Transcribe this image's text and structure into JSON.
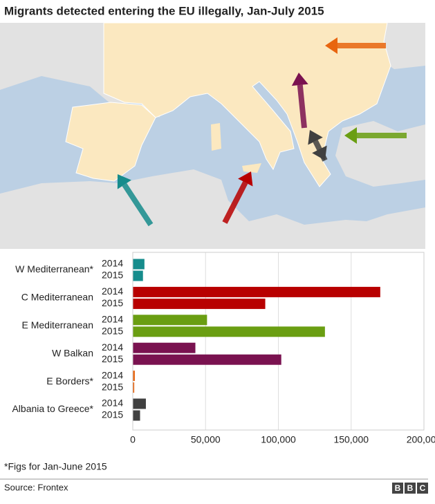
{
  "chart_data": {
    "type": "bar",
    "orientation": "horizontal",
    "title": "Migrants detected entering the EU illegally, Jan-July 2015",
    "categories": [
      "W Mediterranean*",
      "C Mediterranean",
      "E Mediterranean",
      "W Balkan",
      "E Borders*",
      "Albania to Greece*"
    ],
    "colors": [
      "#168c8c",
      "#b80000",
      "#6a9e12",
      "#7a1250",
      "#e8650f",
      "#404040"
    ],
    "series": [
      {
        "name": "2014",
        "values": [
          8000,
          170000,
          51000,
          43000,
          1400,
          9000
        ]
      },
      {
        "name": "2015",
        "values": [
          7000,
          91000,
          132000,
          102000,
          1000,
          5000
        ]
      }
    ],
    "xlim": [
      0,
      200000
    ],
    "xticks": [
      0,
      {
        "value": 50000,
        "label": "50,000"
      },
      {
        "value": 100000,
        "label": "100,000"
      },
      {
        "value": 150000,
        "label": "150,000"
      },
      {
        "value": 200000,
        "label": "200,000"
      }
    ],
    "grid": true,
    "footnote": "*Figs for Jan-June 2015",
    "source": "Source: Frontex",
    "logo": [
      "B",
      "B",
      "C"
    ]
  }
}
